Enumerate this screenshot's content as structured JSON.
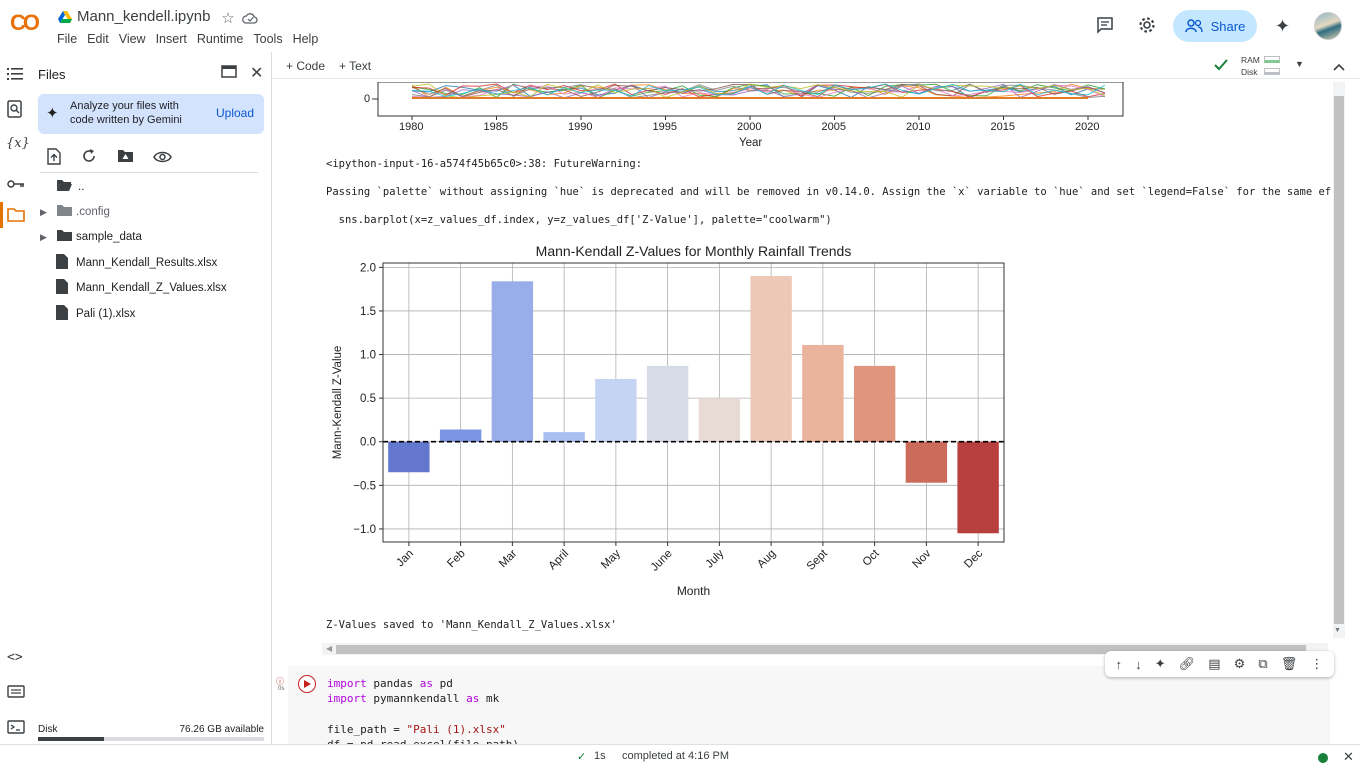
{
  "app": {
    "logo": "CO",
    "notebook_title": "Mann_kendell.ipynb"
  },
  "menu": [
    "File",
    "Edit",
    "View",
    "Insert",
    "Runtime",
    "Tools",
    "Help"
  ],
  "header": {
    "share_label": "Share"
  },
  "sidebar": {
    "title": "Files",
    "gemini_text_line1": "Analyze your files with",
    "gemini_text_line2": "code written by Gemini",
    "upload_label": "Upload",
    "items": [
      {
        "label": "..",
        "type": "folder-open"
      },
      {
        "label": ".config",
        "type": "folder"
      },
      {
        "label": "sample_data",
        "type": "folder"
      },
      {
        "label": "Mann_Kendall_Results.xlsx",
        "type": "file"
      },
      {
        "label": "Mann_Kendall_Z_Values.xlsx",
        "type": "file"
      },
      {
        "label": "Pali (1).xlsx",
        "type": "file"
      }
    ],
    "disk_label": "Disk",
    "disk_available": "76.26 GB available",
    "disk_used_fraction": 0.29
  },
  "toolbar": {
    "code_label": "+ Code",
    "text_label": "+ Text",
    "ram_label": "RAM",
    "disk_label": "Disk"
  },
  "output": {
    "warning_line1": "<ipython-input-16-a574f45b65c0>:38: FutureWarning:",
    "warning_line2": "Passing `palette` without assigning `hue` is deprecated and will be removed in v0.14.0. Assign the `x` variable to `hue` and set `legend=False` for the same effect.",
    "warning_line3": "  sns.barplot(x=z_values_df.index, y=z_values_df['Z-Value'], palette=\"coolwarm\")",
    "saved_line": "Z-Values saved to 'Mann_Kendall_Z_Values.xlsx'"
  },
  "top_chart_partial": {
    "xlabel": "Year",
    "xticks": [
      "1980",
      "1985",
      "1990",
      "1995",
      "2000",
      "2005",
      "2010",
      "2015",
      "2020"
    ],
    "ytick_visible": "0"
  },
  "chart_data": {
    "type": "bar",
    "title": "Mann-Kendall Z-Values for Monthly Rainfall Trends",
    "xlabel": "Month",
    "ylabel": "Mann-Kendall Z-Value",
    "categories": [
      "Jan",
      "Feb",
      "Mar",
      "April",
      "May",
      "June",
      "July",
      "Aug",
      "Sept",
      "Oct",
      "Nov",
      "Dec"
    ],
    "values": [
      -0.35,
      0.14,
      1.84,
      0.11,
      0.72,
      0.87,
      0.5,
      1.9,
      1.11,
      0.87,
      -0.47,
      -1.05
    ],
    "colors": [
      "#6477cf",
      "#7b94e4",
      "#97aeea",
      "#a9bfef",
      "#c5d4f2",
      "#d6dce6",
      "#e8dbd6",
      "#edc8b6",
      "#ebb39c",
      "#e0967e",
      "#cc6b5a",
      "#b7403e"
    ],
    "ylim": [
      -1.15,
      2.05
    ],
    "yticks": [
      "2.0",
      "1.5",
      "1.0",
      "0.5",
      "0.0",
      "−0.5",
      "−1.0"
    ],
    "ytick_values": [
      2.0,
      1.5,
      1.0,
      0.5,
      0.0,
      -0.5,
      -1.0
    ],
    "grid": true,
    "reference_line": 0
  },
  "code": {
    "line1_kw": "import",
    "line1_mod": " pandas ",
    "line1_as": "as",
    "line1_alias": " pd",
    "line2_kw": "import",
    "line2_mod": " pymannkendall ",
    "line2_as": "as",
    "line2_alias": " mk",
    "line3_var": "file_path = ",
    "line3_str": "\"Pali (1).xlsx\"",
    "line4": "df = pd.read_excel(file_path)"
  },
  "status": {
    "duration": "1s",
    "completed": "completed at 4:16 PM"
  }
}
